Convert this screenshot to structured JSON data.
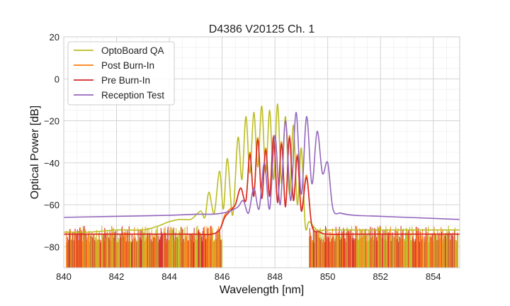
{
  "chart_data": {
    "type": "line",
    "title": "D4386 V20125 Ch. 1",
    "xlabel": "Wavelength [nm]",
    "ylabel": "Optical Power [dB]",
    "xlim": [
      840,
      855
    ],
    "ylim": [
      -90,
      20
    ],
    "xticks": [
      840,
      842,
      844,
      846,
      848,
      850,
      852,
      854
    ],
    "xtick_labels": [
      "840",
      "842",
      "844",
      "846",
      "848",
      "850",
      "852",
      "854"
    ],
    "yticks": [
      20,
      0,
      -20,
      -40,
      -60,
      -80
    ],
    "ytick_labels": [
      "20",
      "0",
      "−20",
      "−40",
      "−60",
      "−80"
    ],
    "x_minor_step": 0.5,
    "y_minor_step": 5,
    "grid": true,
    "legend_position": "top-left",
    "series": [
      {
        "name": "OptoBoard QA",
        "color": "#bcbd22",
        "x": [
          840.0,
          841.0,
          842.0,
          843.0,
          843.6,
          844.0,
          844.4,
          844.8,
          845.0,
          845.2,
          845.35,
          845.5,
          845.7,
          845.9,
          846.05,
          846.2,
          846.4,
          846.6,
          846.75,
          846.9,
          847.05,
          847.2,
          847.35,
          847.5,
          847.65,
          847.8,
          847.95,
          848.1,
          848.25,
          848.4,
          848.55,
          848.7,
          848.85,
          849.0,
          849.15,
          849.3,
          849.6,
          850.0,
          851.0,
          852.0,
          853.0,
          854.0,
          855.0
        ],
        "y": [
          -73,
          -73,
          -72,
          -72,
          -70,
          -68,
          -67,
          -67,
          -65,
          -63,
          -66,
          -54,
          -64,
          -44,
          -62,
          -38,
          -65,
          -28,
          -48,
          -18,
          -45,
          -16,
          -42,
          -13,
          -45,
          -15,
          -48,
          -12,
          -50,
          -18,
          -55,
          -22,
          -60,
          -33,
          -70,
          -68,
          -72,
          -72,
          -72,
          -72,
          -72,
          -72,
          -72
        ]
      },
      {
        "name": "Post Burn-In",
        "color": "#ff7f0e",
        "x": [
          840.0,
          841.0,
          842.0,
          843.0,
          844.0,
          845.0,
          845.6,
          845.9,
          846.1,
          846.3,
          846.5,
          846.7,
          846.9,
          847.05,
          847.2,
          847.35,
          847.5,
          847.65,
          847.8,
          847.95,
          848.1,
          848.25,
          848.4,
          848.55,
          848.7,
          848.85,
          849.0,
          849.2,
          849.4,
          849.7,
          850.0,
          851.0,
          852.0,
          853.0,
          854.0,
          855.0
        ],
        "y": [
          -74,
          -74,
          -74,
          -74,
          -74,
          -74,
          -74,
          -72,
          -65,
          -62,
          -60,
          -52,
          -58,
          -35,
          -55,
          -28,
          -56,
          -33,
          -55,
          -27,
          -58,
          -30,
          -60,
          -27,
          -57,
          -36,
          -62,
          -46,
          -70,
          -73,
          -74,
          -74,
          -74,
          -74,
          -74,
          -74
        ]
      },
      {
        "name": "Pre Burn-In",
        "color": "#d62728",
        "x": [
          840.0,
          841.0,
          842.0,
          843.0,
          844.0,
          845.0,
          845.6,
          845.9,
          846.1,
          846.3,
          846.5,
          846.7,
          846.9,
          847.05,
          847.2,
          847.35,
          847.5,
          847.65,
          847.8,
          847.95,
          848.1,
          848.25,
          848.4,
          848.55,
          848.7,
          848.85,
          849.0,
          849.2,
          849.4,
          849.7,
          850.0,
          851.0,
          852.0,
          853.0,
          854.0,
          855.0
        ],
        "y": [
          -74,
          -74,
          -74,
          -74,
          -74,
          -74,
          -74,
          -72,
          -66,
          -63,
          -60,
          -52,
          -58,
          -36,
          -56,
          -29,
          -57,
          -34,
          -56,
          -28,
          -59,
          -31,
          -61,
          -28,
          -58,
          -37,
          -63,
          -47,
          -70,
          -73,
          -74,
          -74,
          -74,
          -74,
          -74,
          -74
        ]
      },
      {
        "name": "Reception Test",
        "color": "#9467bd",
        "x": [
          840.0,
          842.0,
          844.0,
          845.0,
          845.6,
          846.0,
          846.3,
          846.6,
          846.8,
          847.0,
          847.2,
          847.4,
          847.6,
          847.8,
          848.0,
          848.2,
          848.4,
          848.6,
          848.8,
          849.0,
          849.2,
          849.4,
          849.6,
          849.8,
          850.0,
          850.2,
          850.5,
          851.0,
          852.0,
          853.0,
          854.0,
          855.0
        ],
        "y": [
          -66,
          -65.5,
          -65,
          -64.5,
          -64.5,
          -64,
          -63,
          -61,
          -58,
          -64,
          -52,
          -62,
          -40,
          -62,
          -27,
          -60,
          -20,
          -58,
          -16,
          -55,
          -18,
          -50,
          -25,
          -45,
          -40,
          -62,
          -64,
          -65,
          -65.5,
          -66,
          -66.5,
          -67
        ]
      }
    ]
  }
}
